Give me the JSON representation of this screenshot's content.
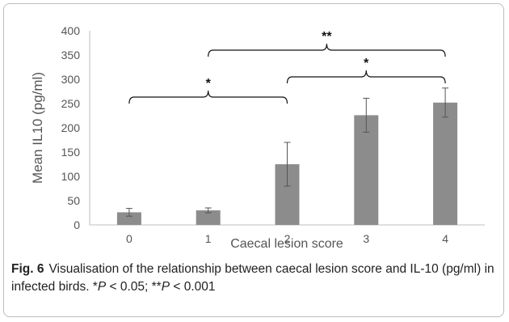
{
  "chart_data": {
    "type": "bar",
    "categories": [
      "0",
      "1",
      "2",
      "3",
      "4"
    ],
    "values": [
      26,
      30,
      125,
      226,
      252
    ],
    "error_bars": [
      8,
      5,
      45,
      35,
      30
    ],
    "xlabel": "Caecal lesion score",
    "ylabel": "Mean IL10 (pg/ml)",
    "ylim": [
      0,
      400
    ],
    "yticks": [
      "0",
      "50",
      "100",
      "150",
      "200",
      "250",
      "300",
      "350",
      "400"
    ],
    "grid": false,
    "bar_color": "#8c8c8c",
    "significance": [
      {
        "from": "0",
        "to": "2",
        "label": "*"
      },
      {
        "from": "2",
        "to": "4",
        "label": "*"
      },
      {
        "from": "1",
        "to": "4",
        "label": "**"
      }
    ]
  },
  "caption": {
    "label": "Fig. 6",
    "text_1": "Visualisation of the relationship between caecal lesion score and IL-10 (pg/ml) in infected birds. *",
    "p1": "P",
    "text_2": " < 0.05; **",
    "p2": "P",
    "text_3": " < 0.001"
  }
}
